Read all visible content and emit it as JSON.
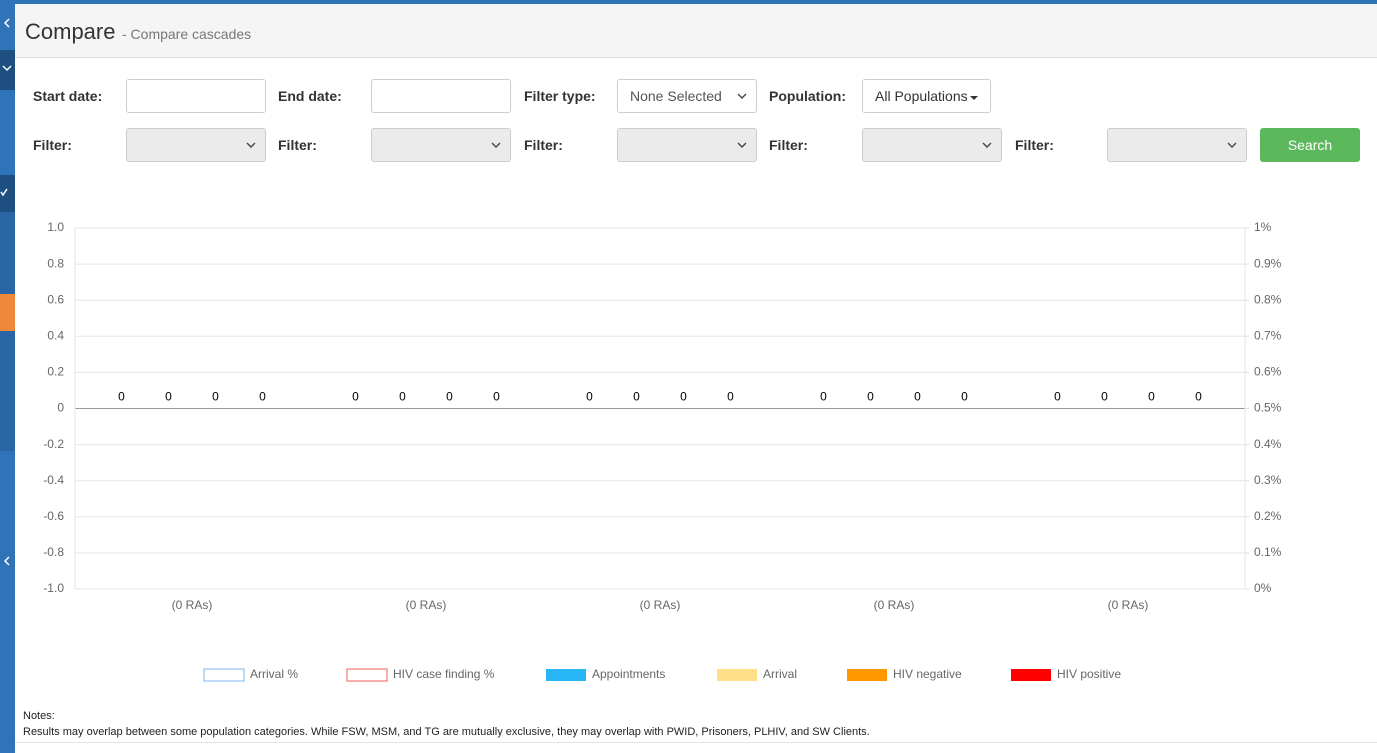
{
  "header": {
    "title": "Compare",
    "subtitle": "- Compare cascades"
  },
  "filters": {
    "start_date": "Start date:",
    "end_date": "End date:",
    "filter_type": {
      "label": "Filter type:",
      "value": "None Selected"
    },
    "population": {
      "label": "Population:",
      "value": "All Populations"
    },
    "filter_labels": [
      "Filter:",
      "Filter:",
      "Filter:",
      "Filter:",
      "Filter:"
    ],
    "search": "Search"
  },
  "chart_data": {
    "type": "bar",
    "categories": [
      "(0 RAs)",
      "(0 RAs)",
      "(0 RAs)",
      "(0 RAs)",
      "(0 RAs)"
    ],
    "series": [
      {
        "name": "Arrival %",
        "color": "#7cb5ec",
        "axis": "y2",
        "values": [
          null,
          null,
          null,
          null,
          null
        ]
      },
      {
        "name": "HIV case finding %",
        "color": "#f15c5c",
        "axis": "y2",
        "values": [
          null,
          null,
          null,
          null,
          null
        ]
      },
      {
        "name": "Appointments",
        "color": "#29b6f6",
        "values": [
          0,
          0,
          0,
          0,
          0
        ]
      },
      {
        "name": "Arrival",
        "color": "#ffe08a",
        "values": [
          0,
          0,
          0,
          0,
          0
        ]
      },
      {
        "name": "HIV negative",
        "color": "#ff9800",
        "values": [
          0,
          0,
          0,
          0,
          0
        ]
      },
      {
        "name": "HIV positive",
        "color": "#ff0000",
        "values": [
          0,
          0,
          0,
          0,
          0
        ]
      }
    ],
    "ylim": [
      -1,
      1
    ],
    "yticks": [
      {
        "value": 1,
        "label": "1.0"
      },
      0.8,
      0.6,
      0.4,
      0.2,
      0,
      -0.2,
      -0.4,
      -0.6,
      -0.8,
      {
        "value": -1,
        "label": "-1.0"
      }
    ],
    "y2lim": [
      0,
      1
    ],
    "y2ticks": [
      {
        "value": 1,
        "label": "1%"
      },
      {
        "value": 0.9,
        "label": "0.9%"
      },
      {
        "value": 0.8,
        "label": "0.8%"
      },
      {
        "value": 0.7,
        "label": "0.7%"
      },
      {
        "value": 0.6,
        "label": "0.6%"
      },
      {
        "value": 0.5,
        "label": "0.5%"
      },
      {
        "value": 0.4,
        "label": "0.4%"
      },
      {
        "value": 0.3,
        "label": "0.3%"
      },
      {
        "value": 0.2,
        "label": "0.2%"
      },
      {
        "value": 0.1,
        "label": "0.1%"
      },
      {
        "value": 0,
        "label": "0%"
      }
    ],
    "grid": true
  },
  "notes": {
    "title": "Notes:",
    "text": "Results may overlap between some population categories. While FSW, MSM, and TG are mutually exclusive, they may overlap with PWID, Prisoners, PLHIV, and SW Clients."
  }
}
